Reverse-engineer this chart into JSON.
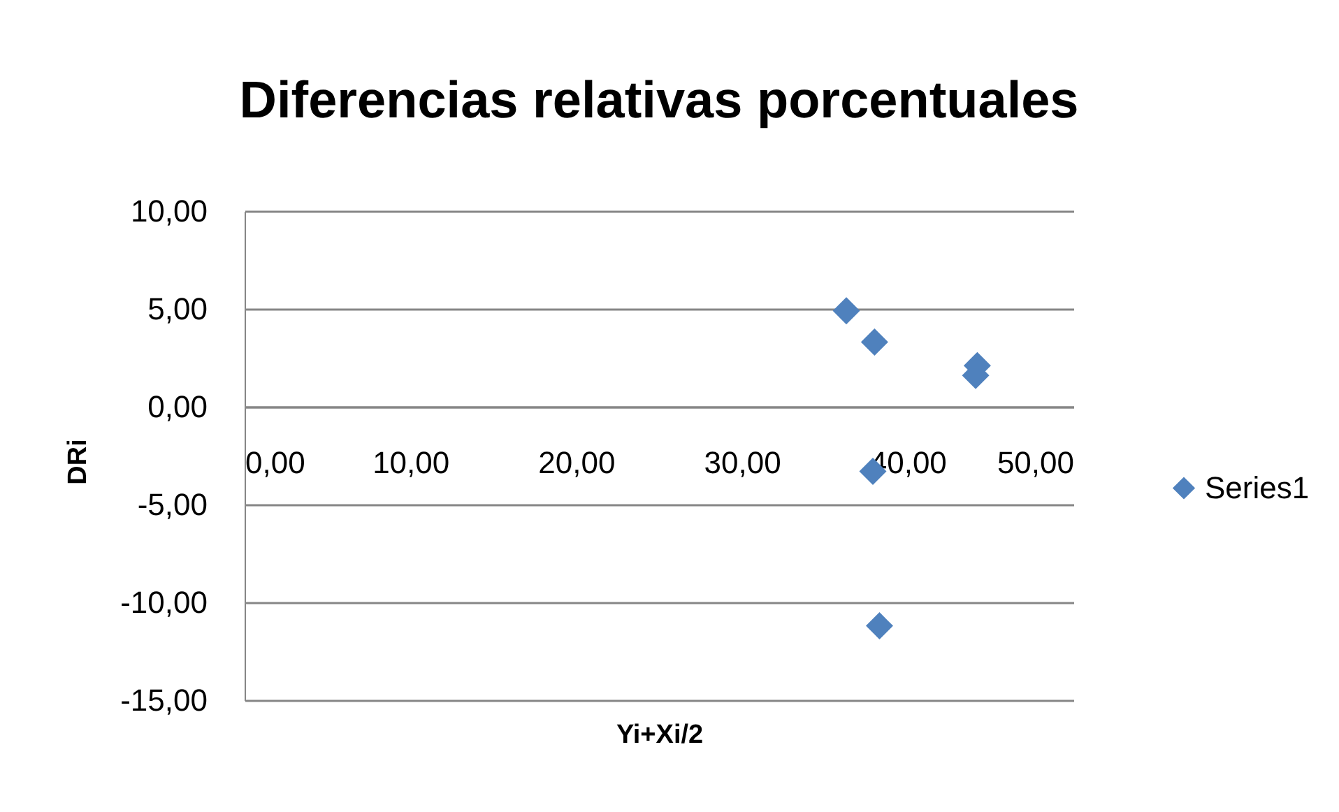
{
  "chart_data": {
    "type": "scatter",
    "title": "Diferencias relativas porcentuales",
    "xlabel": "Yi+Xi/2",
    "ylabel": "DRi",
    "series": [
      {
        "name": "Series1",
        "color": "#4f81bd",
        "x": [
          36.3,
          38.0,
          44.2,
          44.1,
          37.9,
          38.3
        ],
        "values": [
          4.9,
          3.3,
          2.1,
          1.6,
          -3.3,
          -11.2
        ]
      }
    ],
    "xlim": [
      0,
      50
    ],
    "xticks": [
      {
        "value": 0,
        "label": "0,00"
      },
      {
        "value": 10,
        "label": "10,00"
      },
      {
        "value": 20,
        "label": "20,00"
      },
      {
        "value": 30,
        "label": "30,00"
      },
      {
        "value": 40,
        "label": "40,00"
      },
      {
        "value": 50,
        "label": "50,00"
      }
    ],
    "ylim": [
      -15,
      10
    ],
    "yticks": [
      {
        "value": -15,
        "label": "-15,00"
      },
      {
        "value": -10,
        "label": "-10,00"
      },
      {
        "value": -5,
        "label": "-5,00"
      },
      {
        "value": 0,
        "label": "0,00"
      },
      {
        "value": 5,
        "label": "5,00"
      },
      {
        "value": 10,
        "label": "10,00"
      }
    ],
    "grid": "y",
    "legend": "right",
    "marker": "diamond"
  }
}
